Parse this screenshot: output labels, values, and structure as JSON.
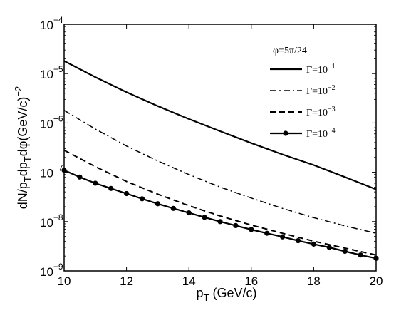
{
  "chart_data": {
    "type": "line",
    "title": "",
    "xlabel": "p_T (GeV/c)",
    "ylabel": "dN/p_T dp_T dφ (GeV/c)^-2",
    "xlim": [
      10,
      20
    ],
    "ylim": [
      1e-09,
      0.0001
    ],
    "yscale": "log",
    "grid": false,
    "x_ticks": [
      10,
      12,
      14,
      16,
      18,
      20
    ],
    "y_ticks": [
      {
        "value": 1e-09,
        "mantissa": "10",
        "exponent": "−9"
      },
      {
        "value": 1e-08,
        "mantissa": "10",
        "exponent": "−8"
      },
      {
        "value": 1e-07,
        "mantissa": "10",
        "exponent": "−7"
      },
      {
        "value": 1e-06,
        "mantissa": "10",
        "exponent": "−6"
      },
      {
        "value": 1e-05,
        "mantissa": "10",
        "exponent": "−5"
      },
      {
        "value": 0.0001,
        "mantissa": "10",
        "exponent": "−4"
      }
    ],
    "legend": {
      "position": "top-right",
      "title": "φ=5π/24"
    },
    "series": [
      {
        "name": "Γ=10⁻¹",
        "label_base": "Γ=10",
        "label_exp": "−1",
        "style": "solid",
        "width": 2.2,
        "x": [
          10,
          11,
          12,
          13,
          14,
          15,
          16,
          17,
          18,
          19,
          20
        ],
        "y": [
          1.8e-05,
          8.5e-06,
          4.2e-06,
          2.2e-06,
          1.2e-06,
          6.8e-07,
          3.9e-07,
          2.3e-07,
          1.4e-07,
          8e-08,
          4.5e-08
        ]
      },
      {
        "name": "Γ=10⁻²",
        "label_base": "Γ=10",
        "label_exp": "−2",
        "style": "dashdot",
        "width": 1.5,
        "x": [
          10,
          11,
          12,
          13,
          14,
          15,
          16,
          17,
          18,
          19,
          20
        ],
        "y": [
          1.8e-06,
          7.5e-07,
          3.4e-07,
          1.7e-07,
          9e-08,
          5e-08,
          3e-08,
          1.85e-08,
          1.2e-08,
          8.2e-09,
          5.8e-09
        ]
      },
      {
        "name": "Γ=10⁻³",
        "label_base": "Γ=10",
        "label_exp": "−3",
        "style": "dashed",
        "width": 2.0,
        "x": [
          10,
          11,
          12,
          13,
          14,
          15,
          16,
          17,
          18,
          19,
          20
        ],
        "y": [
          2.8e-07,
          1.3e-07,
          6.5e-08,
          3.6e-08,
          2.1e-08,
          1.3e-08,
          8.5e-09,
          5.8e-09,
          4e-09,
          2.9e-09,
          2.1e-09
        ]
      },
      {
        "name": "Γ=10⁻⁴",
        "label_base": "Γ=10",
        "label_exp": "−4",
        "style": "solid-marker",
        "width": 2.2,
        "x": [
          10,
          10.5,
          11,
          11.5,
          12,
          12.5,
          13,
          13.5,
          14,
          14.5,
          15,
          15.5,
          16,
          16.5,
          17,
          17.5,
          18,
          18.5,
          19,
          19.5,
          20
        ],
        "y": [
          1.1e-07,
          8e-08,
          6e-08,
          4.7e-08,
          3.7e-08,
          2.9e-08,
          2.3e-08,
          1.85e-08,
          1.5e-08,
          1.22e-08,
          1e-08,
          8.3e-09,
          6.9e-09,
          5.8e-09,
          4.9e-09,
          4.1e-09,
          3.5e-09,
          3e-09,
          2.5e-09,
          2.1e-09,
          1.8e-09
        ]
      }
    ]
  }
}
